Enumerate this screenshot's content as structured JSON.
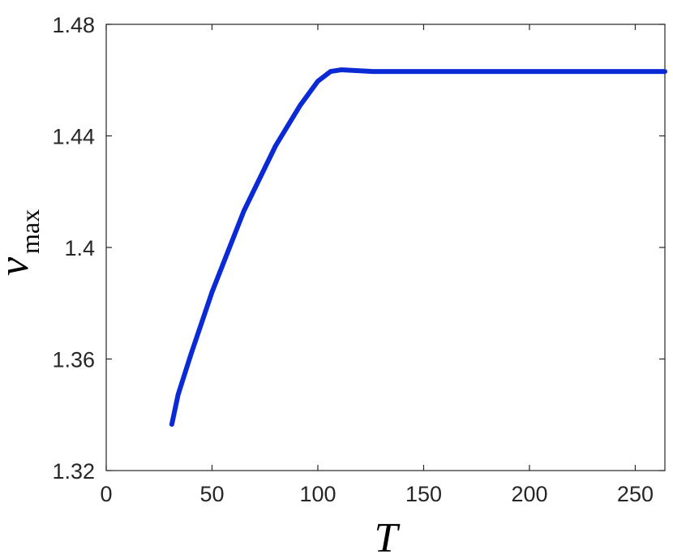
{
  "chart_data": {
    "type": "line",
    "xlabel": "T",
    "ylabel": {
      "main": "v",
      "sub": "max"
    },
    "x": [
      31,
      34,
      40,
      50,
      65,
      80,
      91.6,
      100,
      106,
      111,
      126,
      150,
      200,
      264
    ],
    "series": [
      {
        "color": "#0a2ad6",
        "values": [
          1.3366,
          1.3473,
          1.3616,
          1.384,
          1.413,
          1.4364,
          1.4509,
          1.4596,
          1.4631,
          1.4637,
          1.4631,
          1.4631,
          1.4631,
          1.4631
        ]
      }
    ],
    "xlim": [
      0,
      264
    ],
    "ylim": [
      1.32,
      1.48
    ],
    "xticks": [
      0,
      50,
      100,
      150,
      200,
      250
    ],
    "yticks": [
      1.32,
      1.36,
      1.4,
      1.44,
      1.48
    ]
  }
}
